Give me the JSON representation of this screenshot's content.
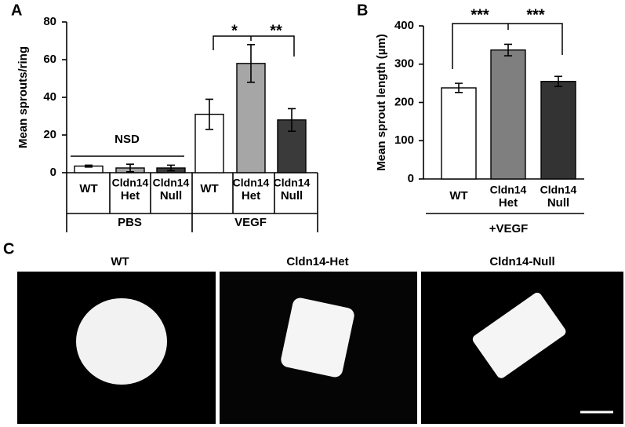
{
  "chart_data": [
    {
      "type": "bar",
      "panel_label": "A",
      "y_label": "Mean sprouts/ring",
      "ylim": [
        0,
        80
      ],
      "yticks": [
        0,
        20,
        40,
        60,
        80
      ],
      "colors": [
        "#ffffff",
        "#a6a6a6",
        "#3a3a3a"
      ],
      "groups": [
        {
          "name": "PBS",
          "categories": [
            [
              "WT"
            ],
            [
              "Cldn14",
              "Het"
            ],
            [
              "Cldn14",
              "Null"
            ]
          ],
          "values": [
            3.5,
            2.5,
            2.5
          ],
          "errors": [
            0.5,
            2,
            1.5
          ]
        },
        {
          "name": "VEGF",
          "categories": [
            [
              "WT"
            ],
            [
              "Cldn14",
              "Het"
            ],
            [
              "Cldn14",
              "Null"
            ]
          ],
          "values": [
            31,
            58,
            28
          ],
          "errors": [
            8,
            10,
            6
          ]
        }
      ],
      "annotations": [
        "NSD",
        "*",
        "**"
      ]
    },
    {
      "type": "bar",
      "panel_label": "B",
      "y_label": "Mean sprout length (µm)",
      "ylim": [
        0,
        400
      ],
      "yticks": [
        0,
        100,
        200,
        300,
        400
      ],
      "colors": [
        "#ffffff",
        "#7f7f7f",
        "#333333"
      ],
      "groups": [
        {
          "name": "+VEGF",
          "categories": [
            [
              "WT"
            ],
            [
              "Cldn14",
              "Het"
            ],
            [
              "Cldn14",
              "Null"
            ]
          ],
          "values": [
            238,
            337,
            255
          ],
          "errors": [
            12,
            15,
            13
          ]
        }
      ],
      "annotations": [
        "***",
        "***"
      ]
    }
  ],
  "panel_c": {
    "label": "C",
    "titles": [
      "WT",
      "Cldn14-Het",
      "Cldn14-Null"
    ]
  }
}
